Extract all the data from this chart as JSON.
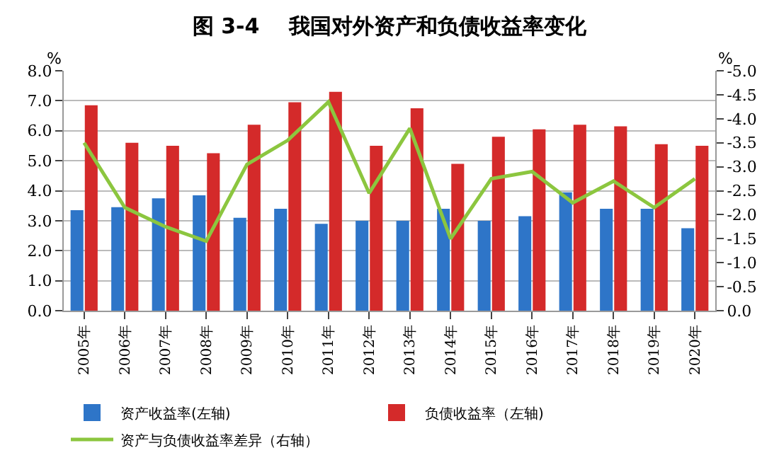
{
  "chart_data": {
    "type": "bar",
    "title": "图 3-4    我国对外资产和负债收益率变化",
    "ylabel": "%",
    "y2label": "%",
    "categories": [
      "2005年",
      "2006年",
      "2007年",
      "2008年",
      "2009年",
      "2010年",
      "2011年",
      "2012年",
      "2013年",
      "2014年",
      "2015年",
      "2016年",
      "2017年",
      "2018年",
      "2019年",
      "2020年"
    ],
    "series": [
      {
        "name": "资产收益率(左轴)",
        "color": "#2e75c8",
        "values": [
          3.35,
          3.45,
          3.75,
          3.85,
          3.1,
          3.4,
          2.9,
          3.0,
          3.0,
          3.4,
          3.0,
          3.15,
          3.95,
          3.4,
          3.4,
          2.75
        ]
      },
      {
        "name": "负债收益率（左轴)",
        "color": "#d42a2a",
        "values": [
          6.85,
          5.6,
          5.5,
          5.25,
          6.2,
          6.95,
          7.3,
          5.5,
          6.75,
          4.9,
          5.8,
          6.05,
          6.2,
          6.15,
          5.55,
          5.5
        ]
      },
      {
        "name": "资产与负债收益率差异（右轴）",
        "type": "line",
        "axis": "y2",
        "color": "#8cc63f",
        "values": [
          -3.5,
          -2.15,
          -1.75,
          -1.45,
          -3.05,
          -3.55,
          -4.35,
          -2.45,
          -3.8,
          -1.5,
          -2.75,
          -2.9,
          -2.25,
          -2.7,
          -2.15,
          -2.75
        ]
      }
    ],
    "ylim": [
      0,
      8
    ],
    "yticks": [
      {
        "value": 0,
        "label": "0.0"
      },
      {
        "value": 1,
        "label": "1.0"
      },
      {
        "value": 2,
        "label": "2.0"
      },
      {
        "value": 3,
        "label": "3.0"
      },
      {
        "value": 4,
        "label": "4.0"
      },
      {
        "value": 5,
        "label": "5.0"
      },
      {
        "value": 6,
        "label": "6.0"
      },
      {
        "value": 7,
        "label": "7.0"
      },
      {
        "value": 8,
        "label": "8.0"
      }
    ],
    "y2lim": [
      0,
      -5
    ],
    "y2ticks": [
      {
        "value": 0,
        "label": "0.0"
      },
      -0.5,
      {
        "value": -1,
        "label": "-1.0"
      },
      -1.5,
      {
        "value": -2,
        "label": "-2.0"
      },
      -2.5,
      {
        "value": -3,
        "label": "-3.0"
      },
      -3.5,
      {
        "value": -4,
        "label": "-4.0"
      },
      -4.5,
      {
        "value": -5,
        "label": "-5.0"
      }
    ],
    "grid": "y",
    "legend": "bottom",
    "marker": "none",
    "line_style": "solid"
  }
}
